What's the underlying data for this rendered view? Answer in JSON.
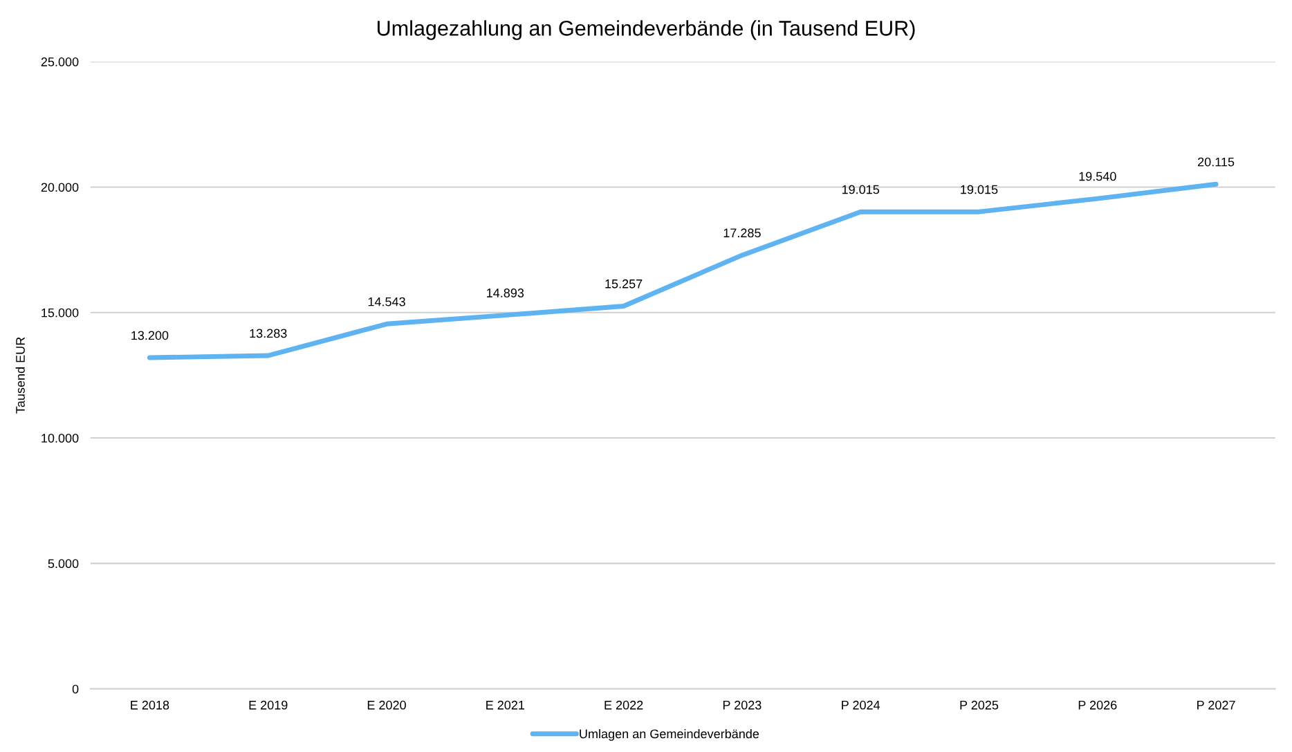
{
  "chart_data": {
    "type": "line",
    "title": "Umlagezahlung an Gemeindeverbände (in Tausend EUR)",
    "ylabel": "Tausend EUR",
    "categories": [
      "E 2018",
      "E 2019",
      "E 2020",
      "E 2021",
      "E 2022",
      "P 2023",
      "P 2024",
      "P 2025",
      "P 2026",
      "P 2027"
    ],
    "series": [
      {
        "name": "Umlagen an Gemeindeverbände",
        "color": "#5eb3f0",
        "values": [
          13200,
          13283,
          14543,
          14893,
          15257,
          17285,
          19015,
          19015,
          19540,
          20115
        ],
        "value_labels": [
          "13.200",
          "13.283",
          "14.543",
          "14.893",
          "15.257",
          "17.285",
          "19.015",
          "19.015",
          "19.540",
          "20.115"
        ]
      }
    ],
    "ylim": [
      0,
      25000
    ],
    "yticks": [
      {
        "value": 0,
        "label": "0"
      },
      {
        "value": 5000,
        "label": "5.000"
      },
      {
        "value": 10000,
        "label": "10.000"
      },
      {
        "value": 15000,
        "label": "15.000"
      },
      {
        "value": 20000,
        "label": "20.000"
      },
      {
        "value": 25000,
        "label": "25.000"
      }
    ],
    "grid": "y",
    "legend": "bottom",
    "marker": "none",
    "line_style": "solid"
  }
}
